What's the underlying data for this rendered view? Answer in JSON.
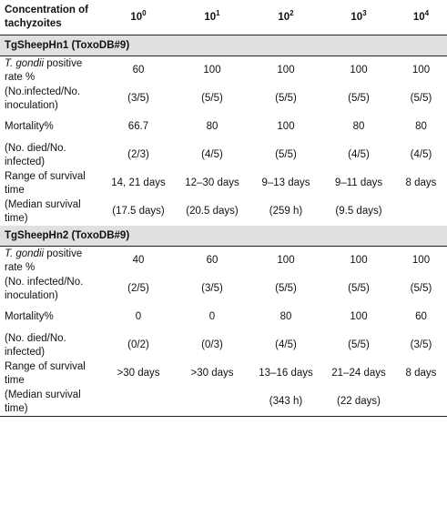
{
  "header": {
    "first": "Concentration of tachyzoites",
    "concentrations": [
      {
        "base": "10",
        "exp": "0"
      },
      {
        "base": "10",
        "exp": "1"
      },
      {
        "base": "10",
        "exp": "2"
      },
      {
        "base": "10",
        "exp": "3"
      },
      {
        "base": "10",
        "exp": "4"
      }
    ]
  },
  "sections": [
    {
      "title": "TgSheepHn1 (ToxoDB#9)",
      "rows": [
        {
          "italic": "T. gondii",
          "label": " positive rate %",
          "values": [
            "60",
            "100",
            "100",
            "100",
            "100"
          ]
        },
        {
          "label": "(No.infected/No. inoculation)",
          "values": [
            "(3/5)",
            "(5/5)",
            "(5/5)",
            "(5/5)",
            "(5/5)"
          ]
        },
        {
          "label": "Mortality%",
          "values": [
            "66.7",
            "80",
            "100",
            "80",
            "80"
          ]
        },
        {
          "label": "(No. died/No. infected)",
          "values": [
            "(2/3)",
            "(4/5)",
            "(5/5)",
            "(4/5)",
            "(4/5)"
          ]
        },
        {
          "label": "Range of survival time",
          "values": [
            "14, 21 days",
            "12–30 days",
            "9–13 days",
            "9–11 days",
            "8 days"
          ]
        },
        {
          "label": "(Median survival time)",
          "values": [
            "(17.5 days)",
            "(20.5 days)",
            "(259 h)",
            "(9.5 days)",
            ""
          ]
        }
      ]
    },
    {
      "title": "TgSheepHn2 (ToxoDB#9)",
      "rows": [
        {
          "italic": "T. gondii",
          "label": " positive rate %",
          "values": [
            "40",
            "60",
            "100",
            "100",
            "100"
          ]
        },
        {
          "label": "(No. infected/No. inoculation)",
          "values": [
            "(2/5)",
            "(3/5)",
            "(5/5)",
            "(5/5)",
            "(5/5)"
          ]
        },
        {
          "label": "Mortality%",
          "values": [
            "0",
            "0",
            "80",
            "100",
            "60"
          ]
        },
        {
          "label": "(No. died/No. infected)",
          "values": [
            "(0/2)",
            "(0/3)",
            "(4/5)",
            "(5/5)",
            "(3/5)"
          ]
        },
        {
          "label": "Range of survival time",
          "values": [
            ">30 days",
            ">30 days",
            "13–16 days",
            "21–24 days",
            "8 days"
          ]
        },
        {
          "label": "(Median survival time)",
          "values": [
            "",
            "",
            "(343 h)",
            "(22 days)",
            ""
          ]
        }
      ]
    }
  ]
}
